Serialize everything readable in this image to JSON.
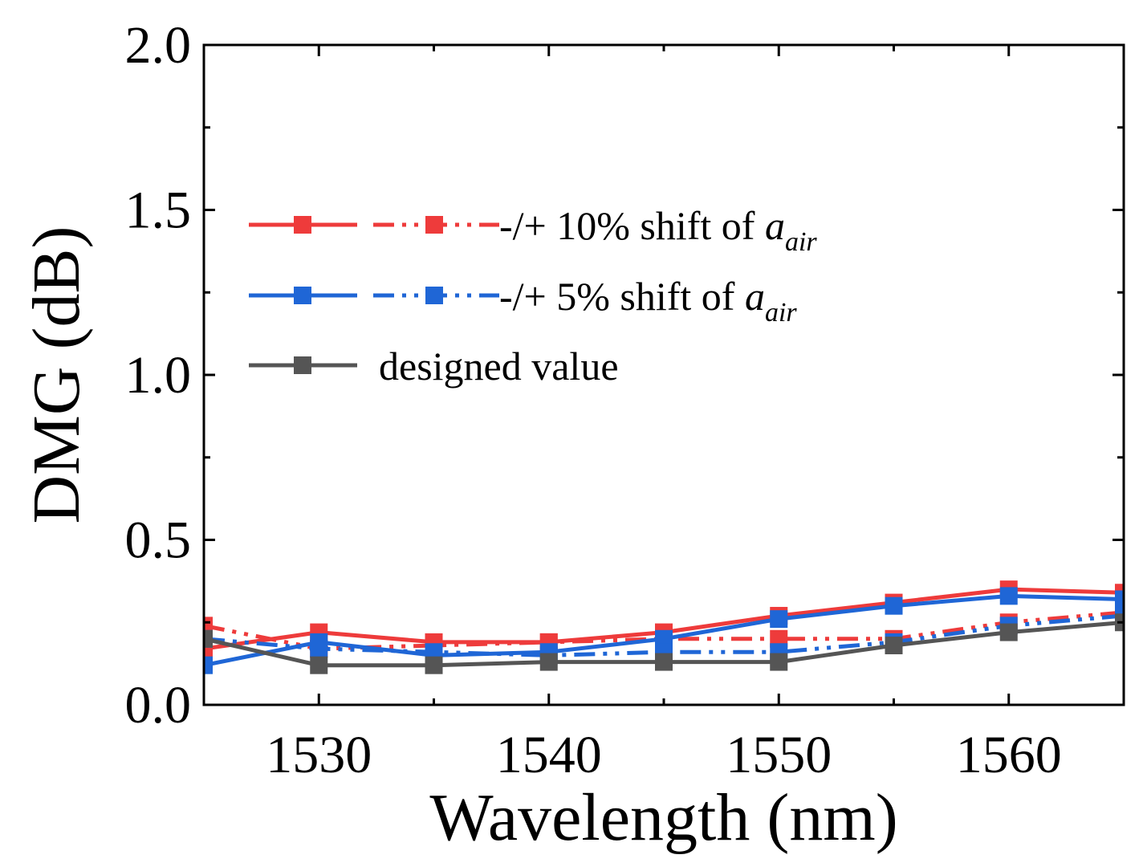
{
  "chart_data": {
    "type": "line",
    "title": "",
    "xlabel": "Wavelength (nm)",
    "ylabel": "DMG (dB)",
    "xlim": [
      1525,
      1565
    ],
    "ylim": [
      0.0,
      2.0
    ],
    "xticks": [
      1530,
      1540,
      1550,
      1560
    ],
    "xtick_labels": [
      "1530",
      "1540",
      "1550",
      "1560"
    ],
    "yticks": [
      0.0,
      0.5,
      1.0,
      1.5,
      2.0
    ],
    "ytick_labels": [
      "0.0",
      "0.5",
      "1.0",
      "1.5",
      "2.0"
    ],
    "grid": false,
    "legend_position": "upper-left",
    "x": [
      1525,
      1530,
      1535,
      1540,
      1545,
      1550,
      1555,
      1560,
      1565
    ],
    "series": [
      {
        "name": "-10% shift of a_air",
        "group": "10%",
        "style": "solid",
        "color": "#ee3b3b",
        "values": [
          0.17,
          0.22,
          0.19,
          0.19,
          0.22,
          0.27,
          0.31,
          0.35,
          0.34
        ]
      },
      {
        "name": "+10% shift of a_air",
        "group": "10%",
        "style": "dashdot",
        "color": "#ee3b3b",
        "values": [
          0.24,
          0.17,
          0.18,
          0.19,
          0.2,
          0.2,
          0.2,
          0.25,
          0.28
        ]
      },
      {
        "name": "-5% shift of a_air",
        "group": "5%",
        "style": "solid",
        "color": "#1f66d6",
        "values": [
          0.12,
          0.19,
          0.15,
          0.16,
          0.2,
          0.26,
          0.3,
          0.33,
          0.32
        ]
      },
      {
        "name": "+5% shift of a_air",
        "group": "5%",
        "style": "dashdot",
        "color": "#1f66d6",
        "values": [
          0.2,
          0.17,
          0.16,
          0.15,
          0.16,
          0.16,
          0.19,
          0.24,
          0.27
        ]
      },
      {
        "name": "designed value",
        "group": "designed",
        "style": "solid",
        "color": "#555555",
        "values": [
          0.2,
          0.12,
          0.12,
          0.13,
          0.13,
          0.13,
          0.18,
          0.22,
          0.25
        ]
      }
    ],
    "legend": [
      {
        "text": "-/+ 10% shift of ",
        "sym": "a",
        "sub": "air",
        "color": "#ee3b3b",
        "dashed_pair": true
      },
      {
        "text": "-/+ 5% shift of ",
        "sym": "a",
        "sub": "air",
        "color": "#1f66d6",
        "dashed_pair": true
      },
      {
        "text": "designed value",
        "sym": "",
        "sub": "",
        "color": "#555555",
        "dashed_pair": false
      }
    ]
  }
}
